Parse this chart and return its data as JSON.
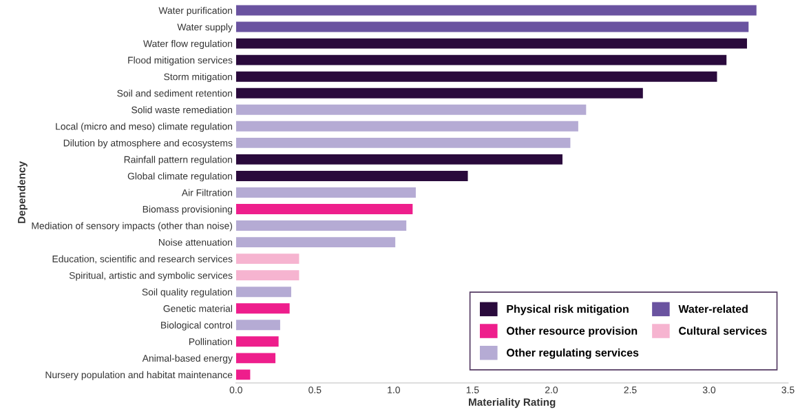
{
  "chart_data": {
    "type": "bar",
    "orientation": "horizontal",
    "xlabel": "Materiality Rating",
    "ylabel": "Dependency",
    "categories": [
      "Water purification",
      "Water supply",
      "Water flow regulation",
      "Flood mitigation services",
      "Storm mitigation",
      "Soil and sediment retention",
      "Solid waste remediation",
      "Local (micro and meso) climate regulation",
      "Dilution by atmosphere and ecosystems",
      "Rainfall pattern regulation",
      "Global climate regulation",
      "Air Filtration",
      "Biomass provisioning",
      "Mediation of sensory impacts (other than noise)",
      "Noise attenuation",
      "Education, scientific and research services",
      "Spiritual, artistic and symbolic services",
      "Soil quality regulation",
      "Genetic material",
      "Biological control",
      "Pollination",
      "Animal-based energy",
      "Nursery population and habitat maintenance"
    ],
    "series": [
      {
        "name": "Physical risk mitigation",
        "color": "#2a0a3c",
        "values": [
          null,
          null,
          3.24,
          3.11,
          3.05,
          2.58,
          null,
          null,
          null,
          2.07,
          1.47,
          null,
          null,
          null,
          null,
          null,
          null,
          null,
          null,
          null,
          null,
          null,
          null
        ]
      },
      {
        "name": "Other resource provision",
        "color": "#ee1e8c",
        "values": [
          null,
          null,
          null,
          null,
          null,
          null,
          null,
          null,
          null,
          null,
          null,
          null,
          1.12,
          null,
          null,
          null,
          null,
          null,
          0.34,
          null,
          0.27,
          0.25,
          0.09
        ]
      },
      {
        "name": "Other regulating services",
        "color": "#b5abd4",
        "values": [
          null,
          null,
          null,
          null,
          null,
          null,
          2.22,
          2.17,
          2.12,
          null,
          null,
          1.14,
          null,
          1.08,
          1.01,
          null,
          null,
          0.35,
          null,
          0.28,
          null,
          null,
          null
        ]
      },
      {
        "name": "Water-related",
        "color": "#6a53a0",
        "values": [
          3.3,
          3.25,
          null,
          null,
          null,
          null,
          null,
          null,
          null,
          null,
          null,
          null,
          null,
          null,
          null,
          null,
          null,
          null,
          null,
          null,
          null,
          null,
          null
        ]
      },
      {
        "name": "Cultural services",
        "color": "#f6b4d0",
        "values": [
          null,
          null,
          null,
          null,
          null,
          null,
          null,
          null,
          null,
          null,
          null,
          null,
          null,
          null,
          null,
          0.4,
          0.4,
          null,
          null,
          null,
          null,
          null,
          null
        ]
      }
    ],
    "xlim": [
      0,
      3.5
    ],
    "xticks": [
      {
        "value": 0,
        "label": "0.0"
      },
      {
        "value": 0.5,
        "label": "0.5"
      },
      {
        "value": 1,
        "label": "1.0"
      },
      {
        "value": 1.5,
        "label": "1.5"
      },
      {
        "value": 2,
        "label": "2.0"
      },
      {
        "value": 2.5,
        "label": "2.5"
      },
      {
        "value": 3,
        "label": "3.0"
      },
      {
        "value": 3.5,
        "label": "3.5"
      }
    ],
    "grid": false,
    "legend": "bottom right"
  }
}
